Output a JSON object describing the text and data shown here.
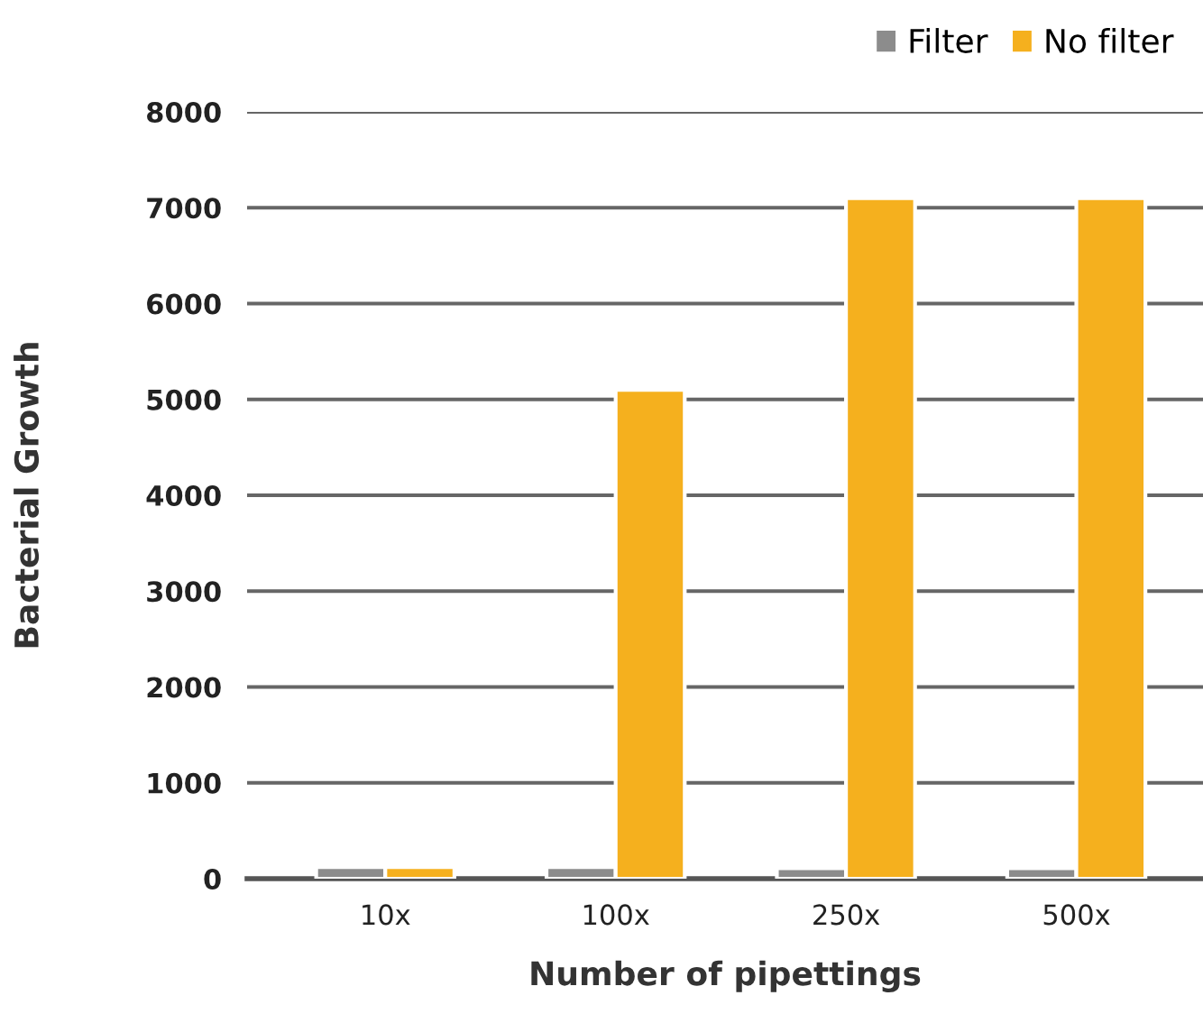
{
  "chart_data": {
    "type": "bar",
    "xlabel": "Number of pipettings",
    "ylabel": "Bacterial Growth",
    "categories": [
      "10x",
      "100x",
      "250x",
      "500x"
    ],
    "series": [
      {
        "name": "Filter",
        "color": "#8c8c8c",
        "values": [
          120,
          120,
          110,
          110
        ]
      },
      {
        "name": "No filter",
        "color": "#f5b01e",
        "values": [
          120,
          5100,
          7100,
          7100
        ]
      }
    ],
    "ylim": [
      0,
      8000
    ],
    "yticks": [
      0,
      1000,
      2000,
      3000,
      4000,
      5000,
      6000,
      7000,
      8000
    ],
    "grid": "y",
    "legend": "top right"
  }
}
